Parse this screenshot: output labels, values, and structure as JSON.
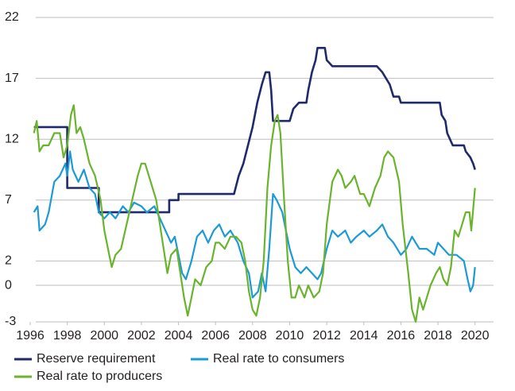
{
  "chart_data": {
    "type": "line",
    "xlim": [
      1996,
      2021
    ],
    "xticks": [
      1996,
      1998,
      2000,
      2002,
      2004,
      2006,
      2008,
      2010,
      2012,
      2014,
      2016,
      2018,
      2020
    ],
    "ylim": [
      -3,
      22
    ],
    "yticks": [
      22,
      17,
      12,
      7,
      2,
      0,
      -3
    ],
    "grid": true,
    "legend": "bottom",
    "series": [
      {
        "name": "Reserve requirement",
        "color": "#1f2a6b",
        "x": [
          1996.2,
          1998.0,
          1998.0,
          1999.7,
          1999.7,
          2003.5,
          2003.5,
          2004.0,
          2004.0,
          2007.0,
          2007.25,
          2007.5,
          2007.75,
          2008.0,
          2008.25,
          2008.5,
          2008.7,
          2008.9,
          2009.0,
          2009.1,
          2010.0,
          2010.2,
          2010.5,
          2010.9,
          2011.0,
          2011.2,
          2011.4,
          2011.5,
          2011.9,
          2012.0,
          2012.3,
          2014.7,
          2015.0,
          2015.2,
          2015.4,
          2015.6,
          2015.9,
          2016.0,
          2018.1,
          2018.2,
          2018.4,
          2018.5,
          2018.8,
          2019.4,
          2019.5,
          2019.75,
          2019.9,
          2020.0
        ],
        "values": [
          13,
          13,
          8,
          8,
          6,
          6,
          7,
          7,
          7.5,
          7.5,
          9,
          10,
          11.5,
          13,
          15,
          16.5,
          17.5,
          17.5,
          16,
          13.5,
          13.5,
          14.5,
          15,
          15,
          16,
          17.5,
          18.5,
          19.5,
          19.5,
          18.5,
          18,
          18,
          17.5,
          17,
          16.5,
          15.5,
          15.5,
          15,
          15,
          14,
          13.5,
          12.5,
          11.5,
          11.5,
          11,
          10.5,
          10,
          9.5
        ]
      },
      {
        "name": "Real rate to consumers",
        "color": "#1b9ad6",
        "x": [
          1996.2,
          1996.4,
          1996.5,
          1996.8,
          1997.0,
          1997.3,
          1997.6,
          1997.9,
          1998.0,
          1998.15,
          1998.3,
          1998.6,
          1998.9,
          1999.2,
          1999.5,
          1999.7,
          2000.0,
          2000.3,
          2000.6,
          2001.0,
          2001.3,
          2001.6,
          2002.0,
          2002.3,
          2002.7,
          2003.0,
          2003.3,
          2003.6,
          2003.8,
          2004.0,
          2004.2,
          2004.4,
          2004.7,
          2005.0,
          2005.3,
          2005.6,
          2005.9,
          2006.2,
          2006.5,
          2006.8,
          2007.2,
          2007.5,
          2007.8,
          2008.0,
          2008.3,
          2008.5,
          2008.7,
          2008.9,
          2009.1,
          2009.3,
          2009.6,
          2009.8,
          2010.0,
          2010.3,
          2010.6,
          2010.9,
          2011.2,
          2011.5,
          2011.7,
          2012.0,
          2012.3,
          2012.6,
          2013.0,
          2013.3,
          2013.6,
          2014.0,
          2014.3,
          2014.7,
          2015.0,
          2015.3,
          2015.6,
          2016.0,
          2016.3,
          2016.6,
          2017.0,
          2017.4,
          2017.8,
          2018.0,
          2018.3,
          2018.6,
          2019.0,
          2019.4,
          2019.6,
          2019.75,
          2019.9,
          2020.0
        ],
        "values": [
          6,
          6.5,
          4.5,
          5,
          6,
          8.5,
          9,
          10,
          9,
          11,
          9.5,
          8.5,
          9.5,
          8,
          7.5,
          6,
          5.5,
          6,
          5.5,
          6.5,
          6,
          6.8,
          6.5,
          6,
          6.5,
          5.5,
          4.5,
          3.5,
          4,
          2.5,
          1,
          0.5,
          2,
          4,
          4.5,
          3.5,
          4.5,
          5,
          4,
          4.5,
          3.5,
          2,
          1,
          -1,
          -0.5,
          1,
          -0.5,
          3,
          7.5,
          7,
          6,
          4.5,
          3,
          1.5,
          1,
          1.5,
          1,
          0.5,
          1,
          3,
          4.5,
          4,
          4.5,
          3.5,
          4,
          4.5,
          4,
          4.5,
          5,
          4,
          3.5,
          2.5,
          3,
          4,
          3,
          3,
          2.5,
          3.5,
          3,
          2.5,
          2.5,
          2,
          0.5,
          -0.5,
          0,
          1.5
        ]
      },
      {
        "name": "Real rate to producers",
        "color": "#6ab42d",
        "x": [
          1996.2,
          1996.35,
          1996.5,
          1996.7,
          1997.0,
          1997.3,
          1997.6,
          1997.8,
          1998.0,
          1998.2,
          1998.35,
          1998.5,
          1998.7,
          1998.9,
          1999.2,
          1999.5,
          1999.8,
          2000.0,
          2000.2,
          2000.4,
          2000.6,
          2000.9,
          2001.2,
          2001.5,
          2001.8,
          2002.0,
          2002.2,
          2002.5,
          2002.8,
          2003.0,
          2003.2,
          2003.4,
          2003.6,
          2003.9,
          2004.1,
          2004.3,
          2004.5,
          2004.7,
          2004.9,
          2005.2,
          2005.5,
          2005.8,
          2006.0,
          2006.2,
          2006.5,
          2006.8,
          2007.1,
          2007.4,
          2007.6,
          2007.8,
          2008.0,
          2008.2,
          2008.4,
          2008.6,
          2008.8,
          2009.0,
          2009.2,
          2009.35,
          2009.5,
          2009.7,
          2009.9,
          2010.1,
          2010.3,
          2010.5,
          2010.8,
          2011.0,
          2011.3,
          2011.6,
          2011.8,
          2012.0,
          2012.3,
          2012.6,
          2012.8,
          2013.0,
          2013.3,
          2013.5,
          2013.8,
          2014.0,
          2014.3,
          2014.6,
          2014.9,
          2015.1,
          2015.3,
          2015.6,
          2015.9,
          2016.1,
          2016.4,
          2016.6,
          2016.8,
          2017.0,
          2017.2,
          2017.4,
          2017.6,
          2017.9,
          2018.1,
          2018.3,
          2018.5,
          2018.7,
          2018.9,
          2019.1,
          2019.3,
          2019.5,
          2019.7,
          2019.8,
          2020.0
        ],
        "values": [
          12.5,
          13.5,
          11,
          11.5,
          11.5,
          12.5,
          12.5,
          10.5,
          11.5,
          14,
          14.8,
          12.5,
          13,
          12,
          10,
          9,
          7,
          4.5,
          3,
          1.5,
          2.5,
          3,
          5,
          7,
          9,
          10,
          10,
          8.5,
          7,
          5,
          3,
          1,
          2.5,
          3,
          1,
          -1,
          -2.5,
          -1,
          0.5,
          0,
          1.5,
          2,
          3.5,
          3.5,
          3,
          4,
          4,
          3.5,
          2,
          -0.5,
          -2,
          -2.5,
          -1,
          2,
          8,
          11.5,
          13.5,
          14,
          12.5,
          7,
          2,
          -1,
          -1,
          0,
          -1,
          0,
          -1,
          -0.5,
          1,
          5,
          8.5,
          9.5,
          9,
          8,
          8.5,
          9,
          7.5,
          7.5,
          6.5,
          8,
          9,
          10.5,
          11,
          10.5,
          8.5,
          5,
          1,
          -2,
          -3,
          -1,
          -2,
          -1,
          0,
          1,
          1.5,
          0.5,
          0,
          1.5,
          4.5,
          4,
          5,
          6,
          6,
          4.5,
          8
        ]
      }
    ]
  }
}
